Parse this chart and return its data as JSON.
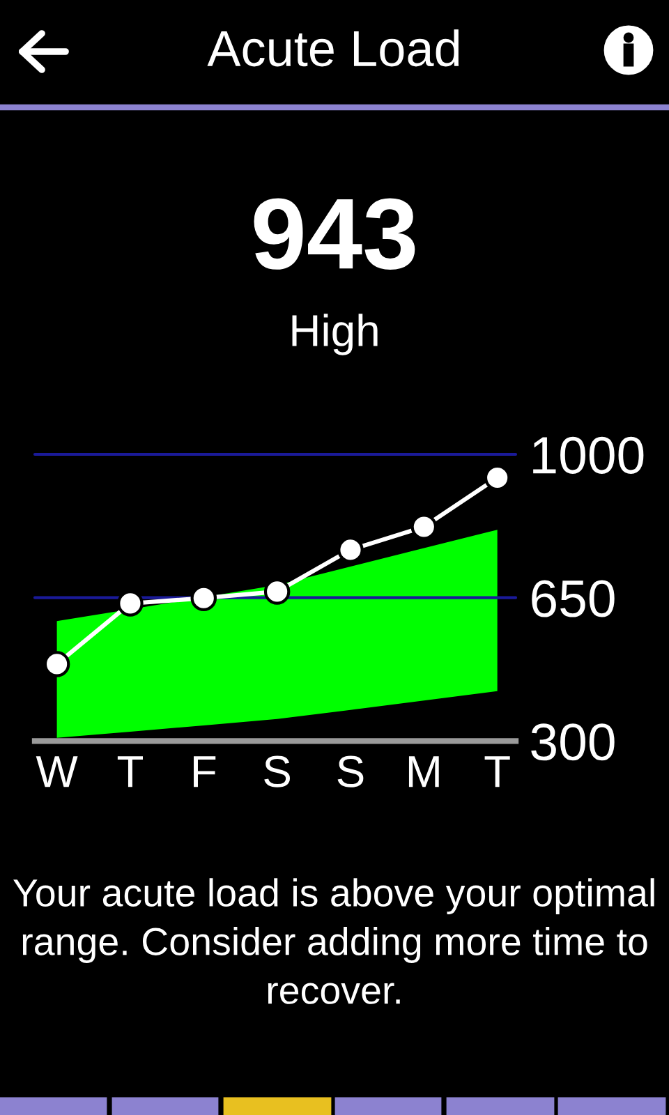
{
  "chart_data": {
    "type": "line",
    "title": "Acute Load",
    "categories": [
      "W",
      "T",
      "F",
      "S",
      "S",
      "M",
      "T"
    ],
    "series": [
      {
        "color": "#00ff00",
        "values": [
          null,
          null,
          null,
          null,
          null,
          null,
          null
        ],
        "lower": [
          308,
          323,
          338,
          354,
          376,
          399,
          422
        ],
        "upper": [
          593,
          622,
          651,
          681,
          726,
          771,
          816
        ]
      },
      {
        "color": "#ffffff",
        "values": [
          488,
          636,
          649,
          665,
          767,
          823,
          943
        ],
        "marker": "circle"
      }
    ],
    "ylim": [
      300,
      1000
    ],
    "yticks": [
      300,
      650,
      1000
    ],
    "line_style": "solid",
    "ref_lines": [
      {
        "axis": "y",
        "value": 1000,
        "color": "#1a1a99"
      },
      {
        "axis": "y",
        "value": 650,
        "color": "#1a1a99"
      }
    ],
    "annotations": [
      "943",
      "High",
      "Your acute load is above your optimal range. Consider adding more time to recover."
    ]
  }
}
